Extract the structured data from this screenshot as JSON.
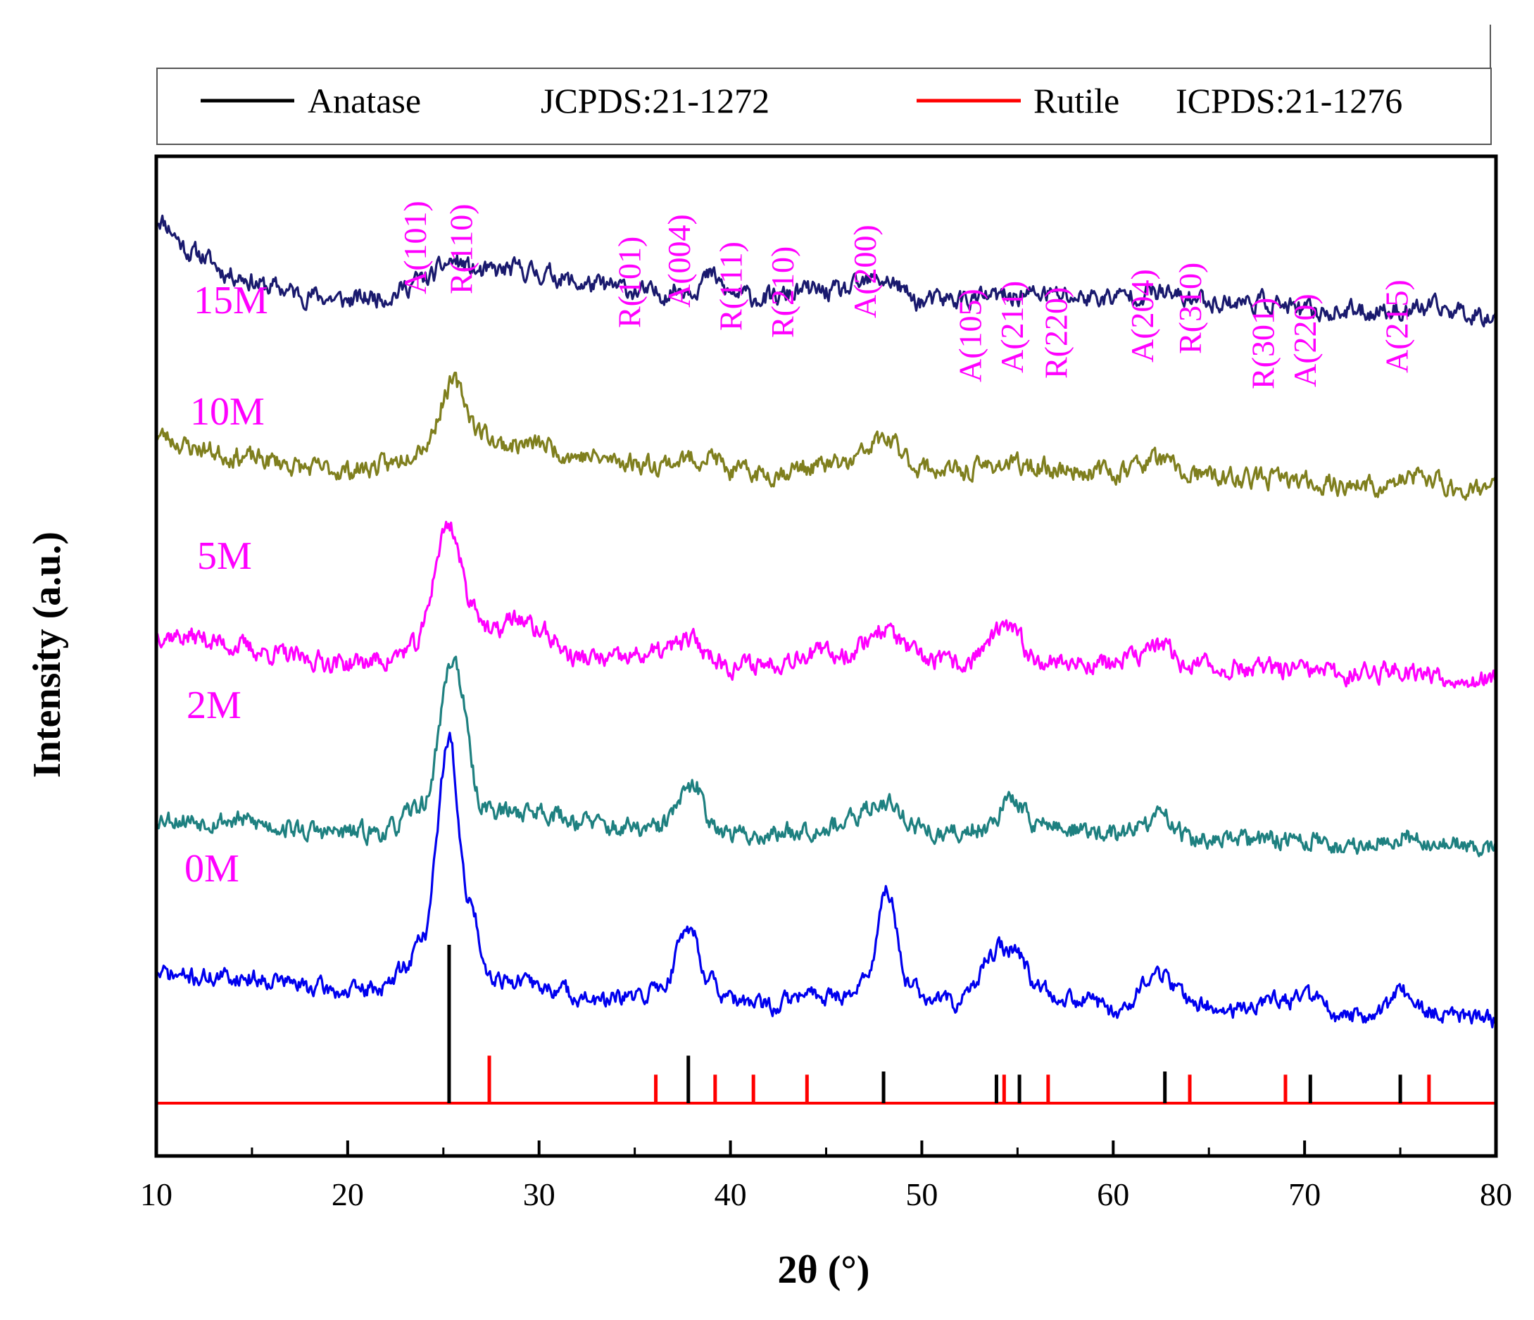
{
  "chart_data": {
    "type": "line",
    "title": "",
    "xlabel": "2θ (°)",
    "ylabel": "Intensity (a.u.)",
    "xlim": [
      10,
      80
    ],
    "xticks": [
      "10",
      "20",
      "30",
      "40",
      "50",
      "60",
      "70",
      "80"
    ],
    "grid": false,
    "legend_position": "top",
    "legend": [
      {
        "label": "Anatase",
        "ref": "JCPDS:21-1272",
        "color": "#000000"
      },
      {
        "label": "Rutile",
        "ref": "ICPDS:21-1276",
        "color": "#ff0000"
      }
    ],
    "series": [
      {
        "name": "15M",
        "color": "#1a1a6e",
        "offset": 4.2,
        "noise": 0.05,
        "seed": 11,
        "points": [
          [
            10,
            0.52
          ],
          [
            12,
            0.3
          ],
          [
            14,
            0.17
          ],
          [
            16,
            0.09
          ],
          [
            18,
            0.04
          ],
          [
            20,
            0.01
          ],
          [
            22,
            0.04
          ],
          [
            24,
            0.14
          ],
          [
            25.5,
            0.25
          ],
          [
            27,
            0.18
          ],
          [
            28.8,
            0.2
          ],
          [
            30.5,
            0.17
          ],
          [
            32.2,
            0.11
          ],
          [
            34,
            0.09
          ],
          [
            36,
            0.05
          ],
          [
            38,
            0.09
          ],
          [
            39,
            0.16
          ],
          [
            40,
            0.05
          ],
          [
            42,
            0.02
          ],
          [
            44,
            0.07
          ],
          [
            45.5,
            0.06
          ],
          [
            48,
            0.14
          ],
          [
            50,
            0.0
          ],
          [
            52,
            0.02
          ],
          [
            54,
            0.03
          ],
          [
            56.3,
            0.05
          ],
          [
            58,
            0.03
          ],
          [
            60,
            0.03
          ],
          [
            62,
            0.06
          ],
          [
            64,
            0.02
          ],
          [
            66,
            0.0
          ],
          [
            68,
            0.0
          ],
          [
            70,
            -0.06
          ],
          [
            72,
            -0.06
          ],
          [
            75,
            -0.05
          ],
          [
            76.5,
            -0.04
          ],
          [
            80,
            -0.08
          ]
        ]
      },
      {
        "name": "10M",
        "color": "#7f7f1e",
        "offset": 3.2,
        "noise": 0.05,
        "seed": 23,
        "points": [
          [
            10,
            0.18
          ],
          [
            12,
            0.1
          ],
          [
            14,
            0.05
          ],
          [
            16,
            0.02
          ],
          [
            18,
            -0.03
          ],
          [
            20,
            -0.04
          ],
          [
            22,
            -0.01
          ],
          [
            24,
            0.12
          ],
          [
            25.5,
            0.5
          ],
          [
            27,
            0.2
          ],
          [
            28,
            0.12
          ],
          [
            30,
            0.12
          ],
          [
            32,
            0.05
          ],
          [
            34,
            0.02
          ],
          [
            36,
            0.0
          ],
          [
            38,
            0.03
          ],
          [
            39,
            0.05
          ],
          [
            40,
            -0.05
          ],
          [
            42,
            -0.06
          ],
          [
            44,
            -0.02
          ],
          [
            46,
            0.0
          ],
          [
            48,
            0.15
          ],
          [
            50,
            -0.02
          ],
          [
            52,
            -0.05
          ],
          [
            54,
            0.0
          ],
          [
            56,
            -0.02
          ],
          [
            58,
            -0.04
          ],
          [
            60,
            -0.05
          ],
          [
            62.3,
            0.03
          ],
          [
            64,
            -0.07
          ],
          [
            66,
            -0.09
          ],
          [
            68,
            -0.09
          ],
          [
            70,
            -0.11
          ],
          [
            72,
            -0.13
          ],
          [
            74,
            -0.14
          ],
          [
            76,
            -0.08
          ],
          [
            78,
            -0.15
          ],
          [
            80,
            -0.15
          ]
        ]
      },
      {
        "name": "5M",
        "color": "#ff00ff",
        "offset": 2.05,
        "noise": 0.05,
        "seed": 37,
        "points": [
          [
            10,
            0.1
          ],
          [
            12,
            0.08
          ],
          [
            14,
            0.03
          ],
          [
            16,
            -0.02
          ],
          [
            18,
            -0.06
          ],
          [
            20,
            -0.08
          ],
          [
            22,
            -0.06
          ],
          [
            23.5,
            0.02
          ],
          [
            25.3,
            0.78
          ],
          [
            26.5,
            0.3
          ],
          [
            27.5,
            0.1
          ],
          [
            28.8,
            0.2
          ],
          [
            30,
            0.12
          ],
          [
            32,
            -0.05
          ],
          [
            34,
            -0.06
          ],
          [
            36,
            -0.02
          ],
          [
            38,
            0.06
          ],
          [
            39,
            -0.03
          ],
          [
            40,
            -0.1
          ],
          [
            42,
            -0.08
          ],
          [
            44,
            -0.02
          ],
          [
            46,
            -0.02
          ],
          [
            48,
            0.13
          ],
          [
            50,
            -0.05
          ],
          [
            52,
            -0.09
          ],
          [
            54.5,
            0.13
          ],
          [
            56,
            -0.05
          ],
          [
            58,
            -0.08
          ],
          [
            60,
            -0.08
          ],
          [
            61,
            -0.05
          ],
          [
            62.3,
            0.03
          ],
          [
            64,
            -0.09
          ],
          [
            66,
            -0.11
          ],
          [
            68,
            -0.12
          ],
          [
            70,
            -0.13
          ],
          [
            72,
            -0.15
          ],
          [
            75,
            -0.12
          ],
          [
            78,
            -0.17
          ],
          [
            80,
            -0.19
          ]
        ]
      },
      {
        "name": "2M",
        "color": "#1e8080",
        "offset": 1.0,
        "noise": 0.05,
        "seed": 53,
        "points": [
          [
            10,
            0.02
          ],
          [
            12,
            0.0
          ],
          [
            14,
            0.0
          ],
          [
            16,
            -0.03
          ],
          [
            18,
            -0.07
          ],
          [
            20,
            -0.08
          ],
          [
            22,
            -0.07
          ],
          [
            24,
            0.1
          ],
          [
            25.5,
            1.0
          ],
          [
            27,
            0.1
          ],
          [
            28,
            0.05
          ],
          [
            30,
            0.06
          ],
          [
            32,
            0.0
          ],
          [
            34,
            -0.05
          ],
          [
            36,
            -0.06
          ],
          [
            38.2,
            0.2
          ],
          [
            39,
            0.0
          ],
          [
            40,
            -0.09
          ],
          [
            42,
            -0.09
          ],
          [
            44,
            -0.05
          ],
          [
            46,
            -0.02
          ],
          [
            48,
            0.12
          ],
          [
            50,
            -0.05
          ],
          [
            51,
            -0.1
          ],
          [
            53,
            -0.05
          ],
          [
            54.8,
            0.12
          ],
          [
            56,
            -0.02
          ],
          [
            58,
            -0.06
          ],
          [
            60,
            -0.09
          ],
          [
            62.8,
            0.02
          ],
          [
            64,
            -0.12
          ],
          [
            66,
            -0.13
          ],
          [
            68,
            -0.12
          ],
          [
            70,
            -0.12
          ],
          [
            72,
            -0.17
          ],
          [
            75,
            -0.1
          ],
          [
            78,
            -0.16
          ],
          [
            80,
            -0.17
          ]
        ]
      },
      {
        "name": "0M",
        "color": "#0000ee",
        "offset": 0.0,
        "noise": 0.045,
        "seed": 71,
        "points": [
          [
            10,
            0.05
          ],
          [
            12,
            0.03
          ],
          [
            14,
            0.03
          ],
          [
            16,
            0.02
          ],
          [
            18,
            -0.03
          ],
          [
            20,
            -0.06
          ],
          [
            22,
            -0.03
          ],
          [
            23,
            0.1
          ],
          [
            24,
            0.3
          ],
          [
            25.3,
            1.5
          ],
          [
            26.3,
            0.5
          ],
          [
            27.5,
            0.04
          ],
          [
            29,
            0.0
          ],
          [
            31,
            -0.05
          ],
          [
            33,
            -0.12
          ],
          [
            35,
            -0.1
          ],
          [
            36.5,
            -0.02
          ],
          [
            37.8,
            0.35
          ],
          [
            39,
            0.0
          ],
          [
            40,
            -0.12
          ],
          [
            42,
            -0.15
          ],
          [
            44,
            -0.08
          ],
          [
            46,
            -0.08
          ],
          [
            47,
            0.0
          ],
          [
            48.2,
            0.55
          ],
          [
            49.3,
            0.0
          ],
          [
            50.5,
            -0.12
          ],
          [
            52,
            -0.12
          ],
          [
            54,
            0.2
          ],
          [
            54.8,
            0.2
          ],
          [
            56,
            0.0
          ],
          [
            57,
            -0.08
          ],
          [
            59,
            -0.12
          ],
          [
            60,
            -0.18
          ],
          [
            62.5,
            0.05
          ],
          [
            64,
            -0.12
          ],
          [
            66,
            -0.18
          ],
          [
            68,
            -0.12
          ],
          [
            70.2,
            -0.1
          ],
          [
            72,
            -0.22
          ],
          [
            74,
            -0.2
          ],
          [
            75,
            -0.05
          ],
          [
            76,
            -0.17
          ],
          [
            78,
            -0.22
          ],
          [
            80,
            -0.24
          ]
        ]
      }
    ],
    "reference_lines": {
      "anatase": [
        {
          "x": 25.3,
          "h": 100
        },
        {
          "x": 37.8,
          "h": 30
        },
        {
          "x": 48.0,
          "h": 20
        },
        {
          "x": 53.9,
          "h": 18
        },
        {
          "x": 55.1,
          "h": 18
        },
        {
          "x": 62.7,
          "h": 20
        },
        {
          "x": 70.3,
          "h": 18
        },
        {
          "x": 75.0,
          "h": 18
        }
      ],
      "rutile": [
        {
          "x": 27.4,
          "h": 30
        },
        {
          "x": 36.1,
          "h": 18
        },
        {
          "x": 39.2,
          "h": 18
        },
        {
          "x": 41.2,
          "h": 18
        },
        {
          "x": 44.0,
          "h": 18
        },
        {
          "x": 54.3,
          "h": 18
        },
        {
          "x": 56.6,
          "h": 18
        },
        {
          "x": 64.0,
          "h": 18
        },
        {
          "x": 69.0,
          "h": 18
        },
        {
          "x": 76.5,
          "h": 18
        }
      ]
    },
    "sample_labels": [
      "15M",
      "10M",
      "5M",
      "2M",
      "0M"
    ],
    "peak_labels": [
      {
        "text": "A(101)",
        "x": 23.5
      },
      {
        "text": "R(110)",
        "x": 25.9
      },
      {
        "text": "R(101)",
        "x": 34.7
      },
      {
        "text": "A(004)",
        "x": 37.3
      },
      {
        "text": "R(111)",
        "x": 40.0
      },
      {
        "text": "R(210)",
        "x": 42.7
      },
      {
        "text": "A(200)",
        "x": 47.0
      },
      {
        "text": "A(105)",
        "x": 52.5
      },
      {
        "text": "A(211)",
        "x": 54.7
      },
      {
        "text": "R(220)",
        "x": 57.0
      },
      {
        "text": "A(204)",
        "x": 61.5
      },
      {
        "text": "R(310)",
        "x": 64.0
      },
      {
        "text": "R(301)",
        "x": 67.8
      },
      {
        "text": "A(220)",
        "x": 70.0
      },
      {
        "text": "A(215)",
        "x": 74.8
      }
    ]
  }
}
